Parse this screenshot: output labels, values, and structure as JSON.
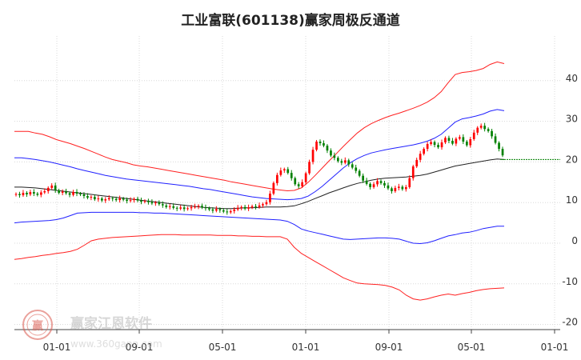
{
  "chart_data": {
    "type": "line",
    "title": "工业富联(601138)赢家周极反通道",
    "x_ticks": [
      "01-01",
      "09-01",
      "05-01",
      "01-01",
      "09-01",
      "05-01",
      "01-01"
    ],
    "y_ticks": [
      -20,
      -10,
      0,
      10,
      20,
      30,
      40
    ],
    "ylim": [
      -21,
      46
    ],
    "grid": true,
    "series": [
      {
        "role": "outer-upper",
        "color": "#ff2020",
        "values": [
          27.5,
          27.5,
          27.5,
          27.1,
          26.8,
          26.2,
          25.5,
          25.0,
          24.5,
          23.9,
          23.3,
          22.6,
          21.9,
          21.2,
          20.6,
          20.2,
          19.8,
          19.3,
          19.0,
          18.8,
          18.5,
          18.2,
          17.9,
          17.6,
          17.3,
          17.0,
          16.7,
          16.4,
          16.1,
          15.8,
          15.5,
          15.1,
          14.8,
          14.5,
          14.2,
          13.9,
          13.6,
          13.3,
          13.1,
          12.9,
          13.0,
          13.6,
          15.0,
          16.7,
          18.5,
          20.3,
          22.0,
          23.8,
          25.5,
          27.1,
          28.4,
          29.4,
          30.2,
          30.9,
          31.5,
          32.0,
          32.6,
          33.2,
          33.9,
          34.7,
          35.8,
          37.3,
          39.5,
          41.5,
          42.0,
          42.2,
          42.5,
          43.0,
          44.0,
          44.6,
          44.2
        ]
      },
      {
        "role": "inner-upper",
        "color": "#2020ff",
        "values": [
          21.0,
          21.0,
          20.8,
          20.6,
          20.3,
          20.0,
          19.6,
          19.2,
          18.8,
          18.3,
          17.9,
          17.5,
          17.1,
          16.7,
          16.4,
          16.1,
          15.8,
          15.6,
          15.4,
          15.2,
          15.0,
          14.8,
          14.6,
          14.4,
          14.2,
          14.0,
          13.7,
          13.4,
          13.2,
          12.9,
          12.6,
          12.3,
          12.0,
          11.7,
          11.4,
          11.2,
          11.0,
          10.9,
          10.8,
          10.7,
          10.8,
          11.0,
          11.6,
          12.7,
          14.0,
          15.5,
          17.0,
          18.5,
          19.8,
          20.8,
          21.6,
          22.2,
          22.6,
          23.0,
          23.3,
          23.6,
          23.9,
          24.2,
          24.6,
          25.1,
          25.8,
          26.8,
          28.3,
          29.8,
          30.6,
          30.9,
          31.3,
          31.8,
          32.5,
          32.9,
          32.6
        ]
      },
      {
        "role": "middle",
        "color": "#222222",
        "values": [
          13.8,
          13.8,
          13.7,
          13.6,
          13.4,
          13.2,
          13.0,
          12.8,
          12.6,
          12.4,
          12.2,
          12.0,
          11.8,
          11.6,
          11.4,
          11.2,
          11.0,
          10.8,
          10.6,
          10.4,
          10.2,
          10.0,
          9.8,
          9.6,
          9.4,
          9.2,
          9.0,
          8.8,
          8.7,
          8.6,
          8.5,
          8.5,
          8.6,
          8.7,
          8.7,
          8.8,
          8.9,
          8.9,
          8.9,
          9.0,
          9.2,
          9.7,
          10.3,
          11.0,
          11.7,
          12.4,
          13.0,
          13.6,
          14.2,
          14.7,
          15.1,
          15.5,
          15.8,
          16.0,
          16.1,
          16.2,
          16.3,
          16.5,
          16.7,
          17.0,
          17.5,
          18.0,
          18.5,
          19.0,
          19.3,
          19.6,
          19.9,
          20.2,
          20.5,
          20.7,
          20.6
        ]
      },
      {
        "role": "inner-lower",
        "color": "#2020ff",
        "values": [
          5.0,
          5.2,
          5.3,
          5.4,
          5.5,
          5.6,
          5.8,
          6.2,
          6.8,
          7.4,
          7.5,
          7.6,
          7.6,
          7.6,
          7.6,
          7.6,
          7.6,
          7.6,
          7.5,
          7.5,
          7.4,
          7.4,
          7.3,
          7.2,
          7.1,
          7.0,
          6.9,
          6.8,
          6.7,
          6.6,
          6.5,
          6.4,
          6.3,
          6.2,
          6.1,
          6.0,
          5.9,
          5.8,
          5.7,
          5.4,
          4.6,
          3.5,
          3.0,
          2.6,
          2.2,
          1.8,
          1.4,
          1.0,
          0.9,
          1.0,
          1.1,
          1.2,
          1.3,
          1.3,
          1.2,
          1.0,
          0.5,
          0.0,
          -0.1,
          0.1,
          0.6,
          1.2,
          1.8,
          2.1,
          2.5,
          2.7,
          3.1,
          3.6,
          3.9,
          4.2,
          4.2
        ]
      },
      {
        "role": "outer-lower",
        "color": "#ff2020",
        "values": [
          -4.0,
          -3.8,
          -3.5,
          -3.3,
          -3.0,
          -2.8,
          -2.5,
          -2.3,
          -2.0,
          -1.5,
          -0.5,
          0.6,
          1.0,
          1.2,
          1.4,
          1.5,
          1.6,
          1.7,
          1.8,
          1.9,
          2.0,
          2.1,
          2.1,
          2.1,
          2.0,
          2.0,
          2.0,
          2.0,
          2.0,
          1.9,
          1.9,
          1.9,
          1.8,
          1.8,
          1.7,
          1.7,
          1.6,
          1.6,
          1.6,
          1.0,
          -1.0,
          -2.5,
          -3.5,
          -4.5,
          -5.5,
          -6.5,
          -7.5,
          -8.5,
          -9.2,
          -9.8,
          -10.0,
          -10.1,
          -10.2,
          -10.4,
          -10.8,
          -11.5,
          -12.8,
          -13.7,
          -14.0,
          -13.7,
          -13.2,
          -12.8,
          -12.5,
          -12.8,
          -12.4,
          -12.1,
          -11.7,
          -11.4,
          -11.2,
          -11.1,
          -11.0
        ]
      }
    ],
    "candles": {
      "up_color": "#ff0000",
      "down_color": "#008000",
      "close": [
        12.1,
        11.8,
        12.4,
        12.0,
        12.6,
        12.2,
        11.9,
        12.5,
        12.8,
        13.6,
        14.2,
        13.0,
        12.4,
        12.7,
        12.3,
        11.9,
        12.6,
        12.2,
        12.0,
        11.6,
        11.2,
        11.4,
        10.8,
        11.0,
        10.5,
        10.8,
        11.1,
        10.9,
        10.6,
        11.0,
        10.7,
        10.4,
        10.6,
        10.9,
        10.5,
        10.2,
        10.4,
        10.1,
        9.8,
        10.0,
        9.6,
        9.3,
        8.9,
        9.1,
        8.7,
        8.5,
        8.8,
        8.4,
        8.6,
        8.9,
        9.0,
        9.2,
        8.8,
        8.6,
        8.3,
        8.0,
        8.4,
        8.1,
        7.8,
        7.6,
        7.9,
        8.3,
        8.7,
        8.9,
        8.5,
        8.8,
        9.1,
        8.9,
        9.3,
        9.6,
        10.1,
        12.2,
        14.8,
        16.8,
        17.9,
        18.2,
        17.3,
        16.0,
        14.5,
        14.0,
        15.0,
        17.2,
        20.0,
        23.0,
        25.0,
        24.6,
        24.0,
        22.8,
        21.6,
        21.0,
        20.2,
        19.8,
        20.4,
        19.4,
        18.6,
        17.8,
        16.6,
        15.4,
        14.6,
        13.8,
        14.5,
        15.3,
        14.8,
        14.2,
        13.5,
        12.8,
        13.6,
        13.9,
        13.3,
        13.8,
        16.0,
        18.9,
        20.5,
        22.0,
        23.2,
        24.4,
        24.9,
        24.2,
        23.6,
        24.8,
        25.9,
        25.2,
        24.5,
        25.7,
        26.1,
        25.0,
        24.1,
        25.6,
        27.2,
        28.4,
        28.9,
        28.1,
        27.6,
        26.3,
        24.7,
        23.2,
        21.6
      ]
    }
  },
  "watermark": {
    "logo_char": "赢",
    "text": "赢家江恩软件",
    "url": "www.360gann.com",
    "accent": "#d9564a"
  }
}
